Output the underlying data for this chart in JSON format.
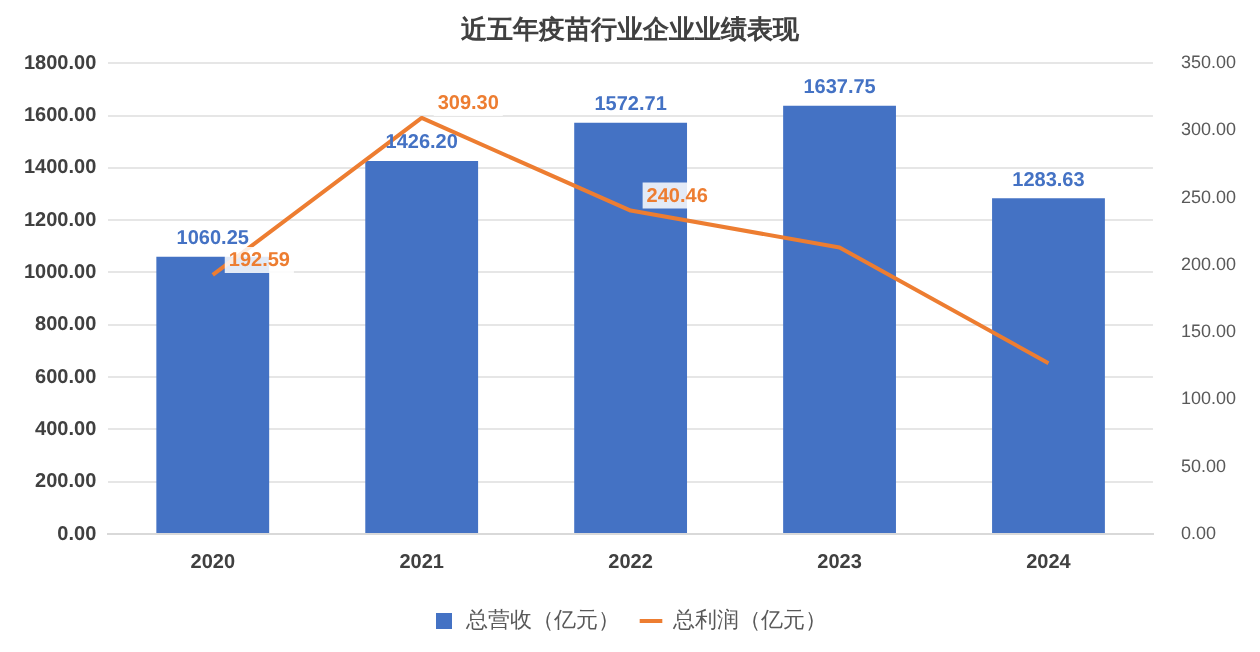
{
  "chart_data": {
    "type": "bar",
    "title": "近五年疫苗行业企业业绩表现",
    "categories": [
      "2020",
      "2021",
      "2022",
      "2023",
      "2024"
    ],
    "series": [
      {
        "name": "总营收（亿元）",
        "color": "#4472c4",
        "values": [
          1060.25,
          1426.2,
          1572.71,
          1637.75,
          1283.63
        ],
        "value_labels": [
          "1060.25",
          "1426.20",
          "1572.71",
          "1637.75",
          "1283.63"
        ]
      },
      {
        "name": "总利润（亿元）",
        "type": "line",
        "axis": "y2",
        "color": "#ed7d31",
        "values": [
          192.59,
          309.3,
          240.46,
          213,
          127
        ],
        "value_labels": [
          "192.59",
          "309.30",
          "240.46",
          null,
          null
        ]
      }
    ],
    "ylim": [
      0,
      1800
    ],
    "yticks": [
      {
        "value": 0,
        "label": "0.00"
      },
      {
        "value": 200,
        "label": "200.00"
      },
      {
        "value": 400,
        "label": "400.00"
      },
      {
        "value": 600,
        "label": "600.00"
      },
      {
        "value": 800,
        "label": "800.00"
      },
      {
        "value": 1000,
        "label": "1000.00"
      },
      {
        "value": 1200,
        "label": "1200.00"
      },
      {
        "value": 1400,
        "label": "1400.00"
      },
      {
        "value": 1600,
        "label": "1600.00"
      },
      {
        "value": 1800,
        "label": "1800.00"
      }
    ],
    "y2lim": [
      0,
      350
    ],
    "y2ticks": [
      {
        "value": 0,
        "label": "0.00"
      },
      {
        "value": 50,
        "label": "50.00"
      },
      {
        "value": 100,
        "label": "100.00"
      },
      {
        "value": 150,
        "label": "150.00"
      },
      {
        "value": 200,
        "label": "200.00"
      },
      {
        "value": 250,
        "label": "250.00"
      },
      {
        "value": 300,
        "label": "300.00"
      },
      {
        "value": 350,
        "label": "350.00"
      }
    ],
    "grid": "y",
    "legend": "bottom",
    "marker": "none",
    "line_style": "solid"
  }
}
